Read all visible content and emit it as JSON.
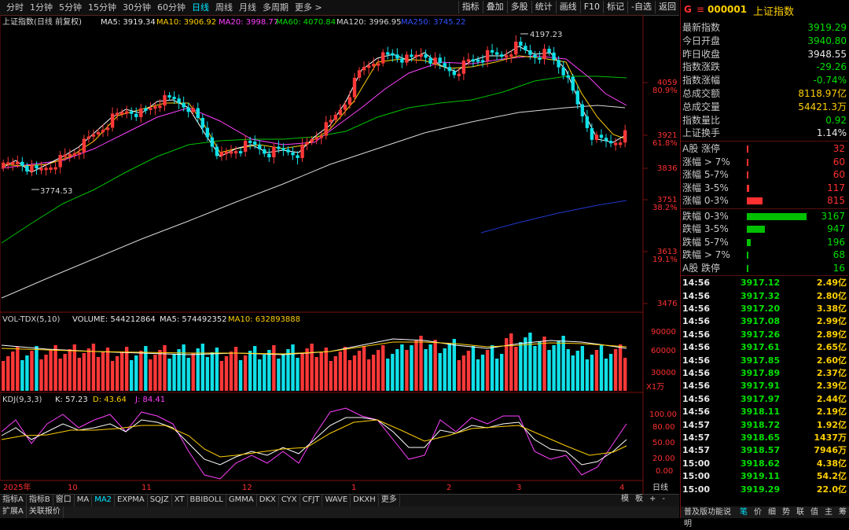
{
  "toolbar": {
    "periods": [
      "分时",
      "1分钟",
      "5分钟",
      "15分钟",
      "30分钟",
      "60分钟",
      "日线",
      "周线",
      "月线",
      "多周期",
      "更多 >"
    ],
    "active_period": "日线",
    "tools": [
      "指标",
      "叠加",
      "多股",
      "统计",
      "画线",
      "F10",
      "标记",
      "-自选",
      "返回"
    ]
  },
  "main_legend": {
    "title": "上证指数(日线 前复权)",
    "ma5": "MA5: 3919.34",
    "ma10": "MA10: 3906.92",
    "ma20": "MA20: 3998.77",
    "ma60": "MA60: 4070.84",
    "ma120": "MA120: 3996.95",
    "ma250": "MA250: 3745.22"
  },
  "price_axis": {
    "ticks": [
      "4059",
      "3921",
      "3836",
      "3751",
      "3613",
      "3476"
    ],
    "fib": [
      "80.9%",
      "61.8%",
      "38.2%",
      "19.1%"
    ]
  },
  "annotations": {
    "high": "4197.23",
    "low": "3774.53"
  },
  "volume_legend": {
    "title": "VOL-TDX(5,10)",
    "volume": "VOLUME: 544212864",
    "ma5": "MA5: 574492352",
    "ma10": "MA10: 632893888",
    "ticks": [
      "90000",
      "60000",
      "30000"
    ],
    "unit": "X1万"
  },
  "kdj_legend": {
    "title": "KDJ(9,3,3)",
    "k": "K: 57.23",
    "d": "D: 43.64",
    "j": "J: 84.41",
    "ticks": [
      "100.00",
      "80.00",
      "50.00",
      "20.00",
      "0.00"
    ]
  },
  "date_axis": [
    "2025年",
    "10",
    "11",
    "12",
    "1",
    "2",
    "3",
    "4"
  ],
  "date_axis_right": "日线",
  "indicator_tabs": [
    "指标A",
    "指标B",
    "窗口",
    "MA",
    "MA2",
    "EXPMA",
    "SQJZ",
    "XT",
    "BBIBOLL",
    "GMMA",
    "DKX",
    "CYX",
    "CFJT",
    "WAVE",
    "DKXH",
    "更多"
  ],
  "active_indicator": "MA2",
  "status_tabs": [
    "扩展A",
    "关联报价"
  ],
  "right_small": [
    "模",
    "板",
    "+",
    "-"
  ],
  "quote": {
    "flag": "G",
    "code": "000001",
    "name": "上证指数",
    "rows": [
      {
        "k": "最新指数",
        "v": "3919.29",
        "c": "#00e000"
      },
      {
        "k": "今日开盘",
        "v": "3940.80",
        "c": "#00e000"
      },
      {
        "k": "昨日收盘",
        "v": "3948.55",
        "c": "#e8e8e8"
      },
      {
        "k": "指数涨跌",
        "v": "-29.26",
        "c": "#00e000"
      },
      {
        "k": "指数涨幅",
        "v": "-0.74%",
        "c": "#00e000"
      },
      {
        "k": "总成交额",
        "v": "8118.97亿",
        "c": "#ffd000"
      },
      {
        "k": "总成交量",
        "v": "54421.3万",
        "c": "#ffd000"
      },
      {
        "k": "指数量比",
        "v": "0.92",
        "c": "#00e000"
      },
      {
        "k": "上证换手",
        "v": "1.14%",
        "c": "#e8e8e8"
      }
    ]
  },
  "breadth_up": [
    {
      "k": "A股 涨停",
      "v": "32",
      "w": 0.01
    },
    {
      "k": "涨幅 > 7%",
      "v": "60",
      "w": 0.02
    },
    {
      "k": "涨幅 5-7%",
      "v": "60",
      "w": 0.02
    },
    {
      "k": "涨幅 3-5%",
      "v": "117",
      "w": 0.04
    },
    {
      "k": "涨幅 0-3%",
      "v": "815",
      "w": 0.26
    }
  ],
  "breadth_down": [
    {
      "k": "跌幅 0-3%",
      "v": "3167",
      "w": 1.0
    },
    {
      "k": "跌幅 3-5%",
      "v": "947",
      "w": 0.3
    },
    {
      "k": "跌幅 5-7%",
      "v": "196",
      "w": 0.06
    },
    {
      "k": "跌幅 > 7%",
      "v": "68",
      "w": 0.02
    },
    {
      "k": "A股 跌停",
      "v": "16",
      "w": 0.01
    }
  ],
  "ticks": [
    {
      "t": "14:56",
      "p": "3917.12",
      "v": "2.49亿"
    },
    {
      "t": "14:56",
      "p": "3917.32",
      "v": "2.80亿"
    },
    {
      "t": "14:56",
      "p": "3917.20",
      "v": "3.38亿"
    },
    {
      "t": "14:56",
      "p": "3917.08",
      "v": "2.99亿"
    },
    {
      "t": "14:56",
      "p": "3917.26",
      "v": "2.89亿"
    },
    {
      "t": "14:56",
      "p": "3917.61",
      "v": "2.65亿"
    },
    {
      "t": "14:56",
      "p": "3917.85",
      "v": "2.60亿"
    },
    {
      "t": "14:56",
      "p": "3917.89",
      "v": "2.37亿"
    },
    {
      "t": "14:56",
      "p": "3917.91",
      "v": "2.39亿"
    },
    {
      "t": "14:56",
      "p": "3917.97",
      "v": "2.44亿"
    },
    {
      "t": "14:56",
      "p": "3918.11",
      "v": "2.19亿"
    },
    {
      "t": "14:57",
      "p": "3918.72",
      "v": "1.92亿"
    },
    {
      "t": "14:57",
      "p": "3918.65",
      "v": "1437万"
    },
    {
      "t": "14:57",
      "p": "3918.57",
      "v": "7946万"
    },
    {
      "t": "15:00",
      "p": "3918.62",
      "v": "4.38亿"
    },
    {
      "t": "15:00",
      "p": "3919.11",
      "v": "54.2亿"
    },
    {
      "t": "15:00",
      "p": "3919.29",
      "v": "22.0亿"
    }
  ],
  "bottom_tabs": [
    "普及版功能说明",
    "笔",
    "价",
    "细",
    "势",
    "联",
    "值",
    "主",
    "筹"
  ],
  "active_bottom": "笔"
}
